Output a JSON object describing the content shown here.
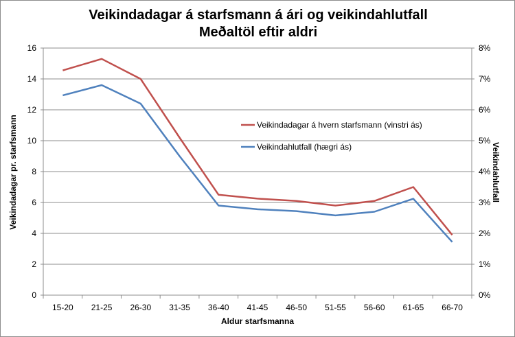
{
  "chart_data": {
    "type": "line",
    "title": "Veikindadagar á starfsmann á ári og veikindahlutfall",
    "subtitle": "Meðaltöl eftir aldri",
    "xlabel": "Aldur starfsmanna",
    "ylabel_left": "Veikindadagar pr. starfsmann",
    "ylabel_right": "Veikindahlutfall",
    "categories": [
      "15-20",
      "21-25",
      "26-30",
      "31-35",
      "36-40",
      "41-45",
      "46-50",
      "51-55",
      "56-60",
      "61-65",
      "66-70"
    ],
    "ylim_left": [
      0,
      16
    ],
    "yticks_left": [
      "0",
      "2",
      "4",
      "6",
      "8",
      "10",
      "12",
      "14",
      "16"
    ],
    "ylim_right": [
      0,
      8
    ],
    "yticks_right": [
      "0%",
      "1%",
      "2%",
      "3%",
      "4%",
      "5%",
      "6%",
      "7%",
      "8%"
    ],
    "grid": true,
    "legend_position": "center-right",
    "series": [
      {
        "name": "Veikindadagar á hvern starfsmann (vinstri ás)",
        "axis": "left",
        "color": "#c0504d",
        "values": [
          14.55,
          15.3,
          14.0,
          10.2,
          6.5,
          6.25,
          6.1,
          5.8,
          6.1,
          7.0,
          3.9
        ]
      },
      {
        "name": "Veikindahlutfall (hægri ás)",
        "axis": "right",
        "color": "#4f81bd",
        "values": [
          6.47,
          6.8,
          6.2,
          4.5,
          2.9,
          2.78,
          2.72,
          2.58,
          2.7,
          3.12,
          1.72
        ]
      }
    ]
  }
}
